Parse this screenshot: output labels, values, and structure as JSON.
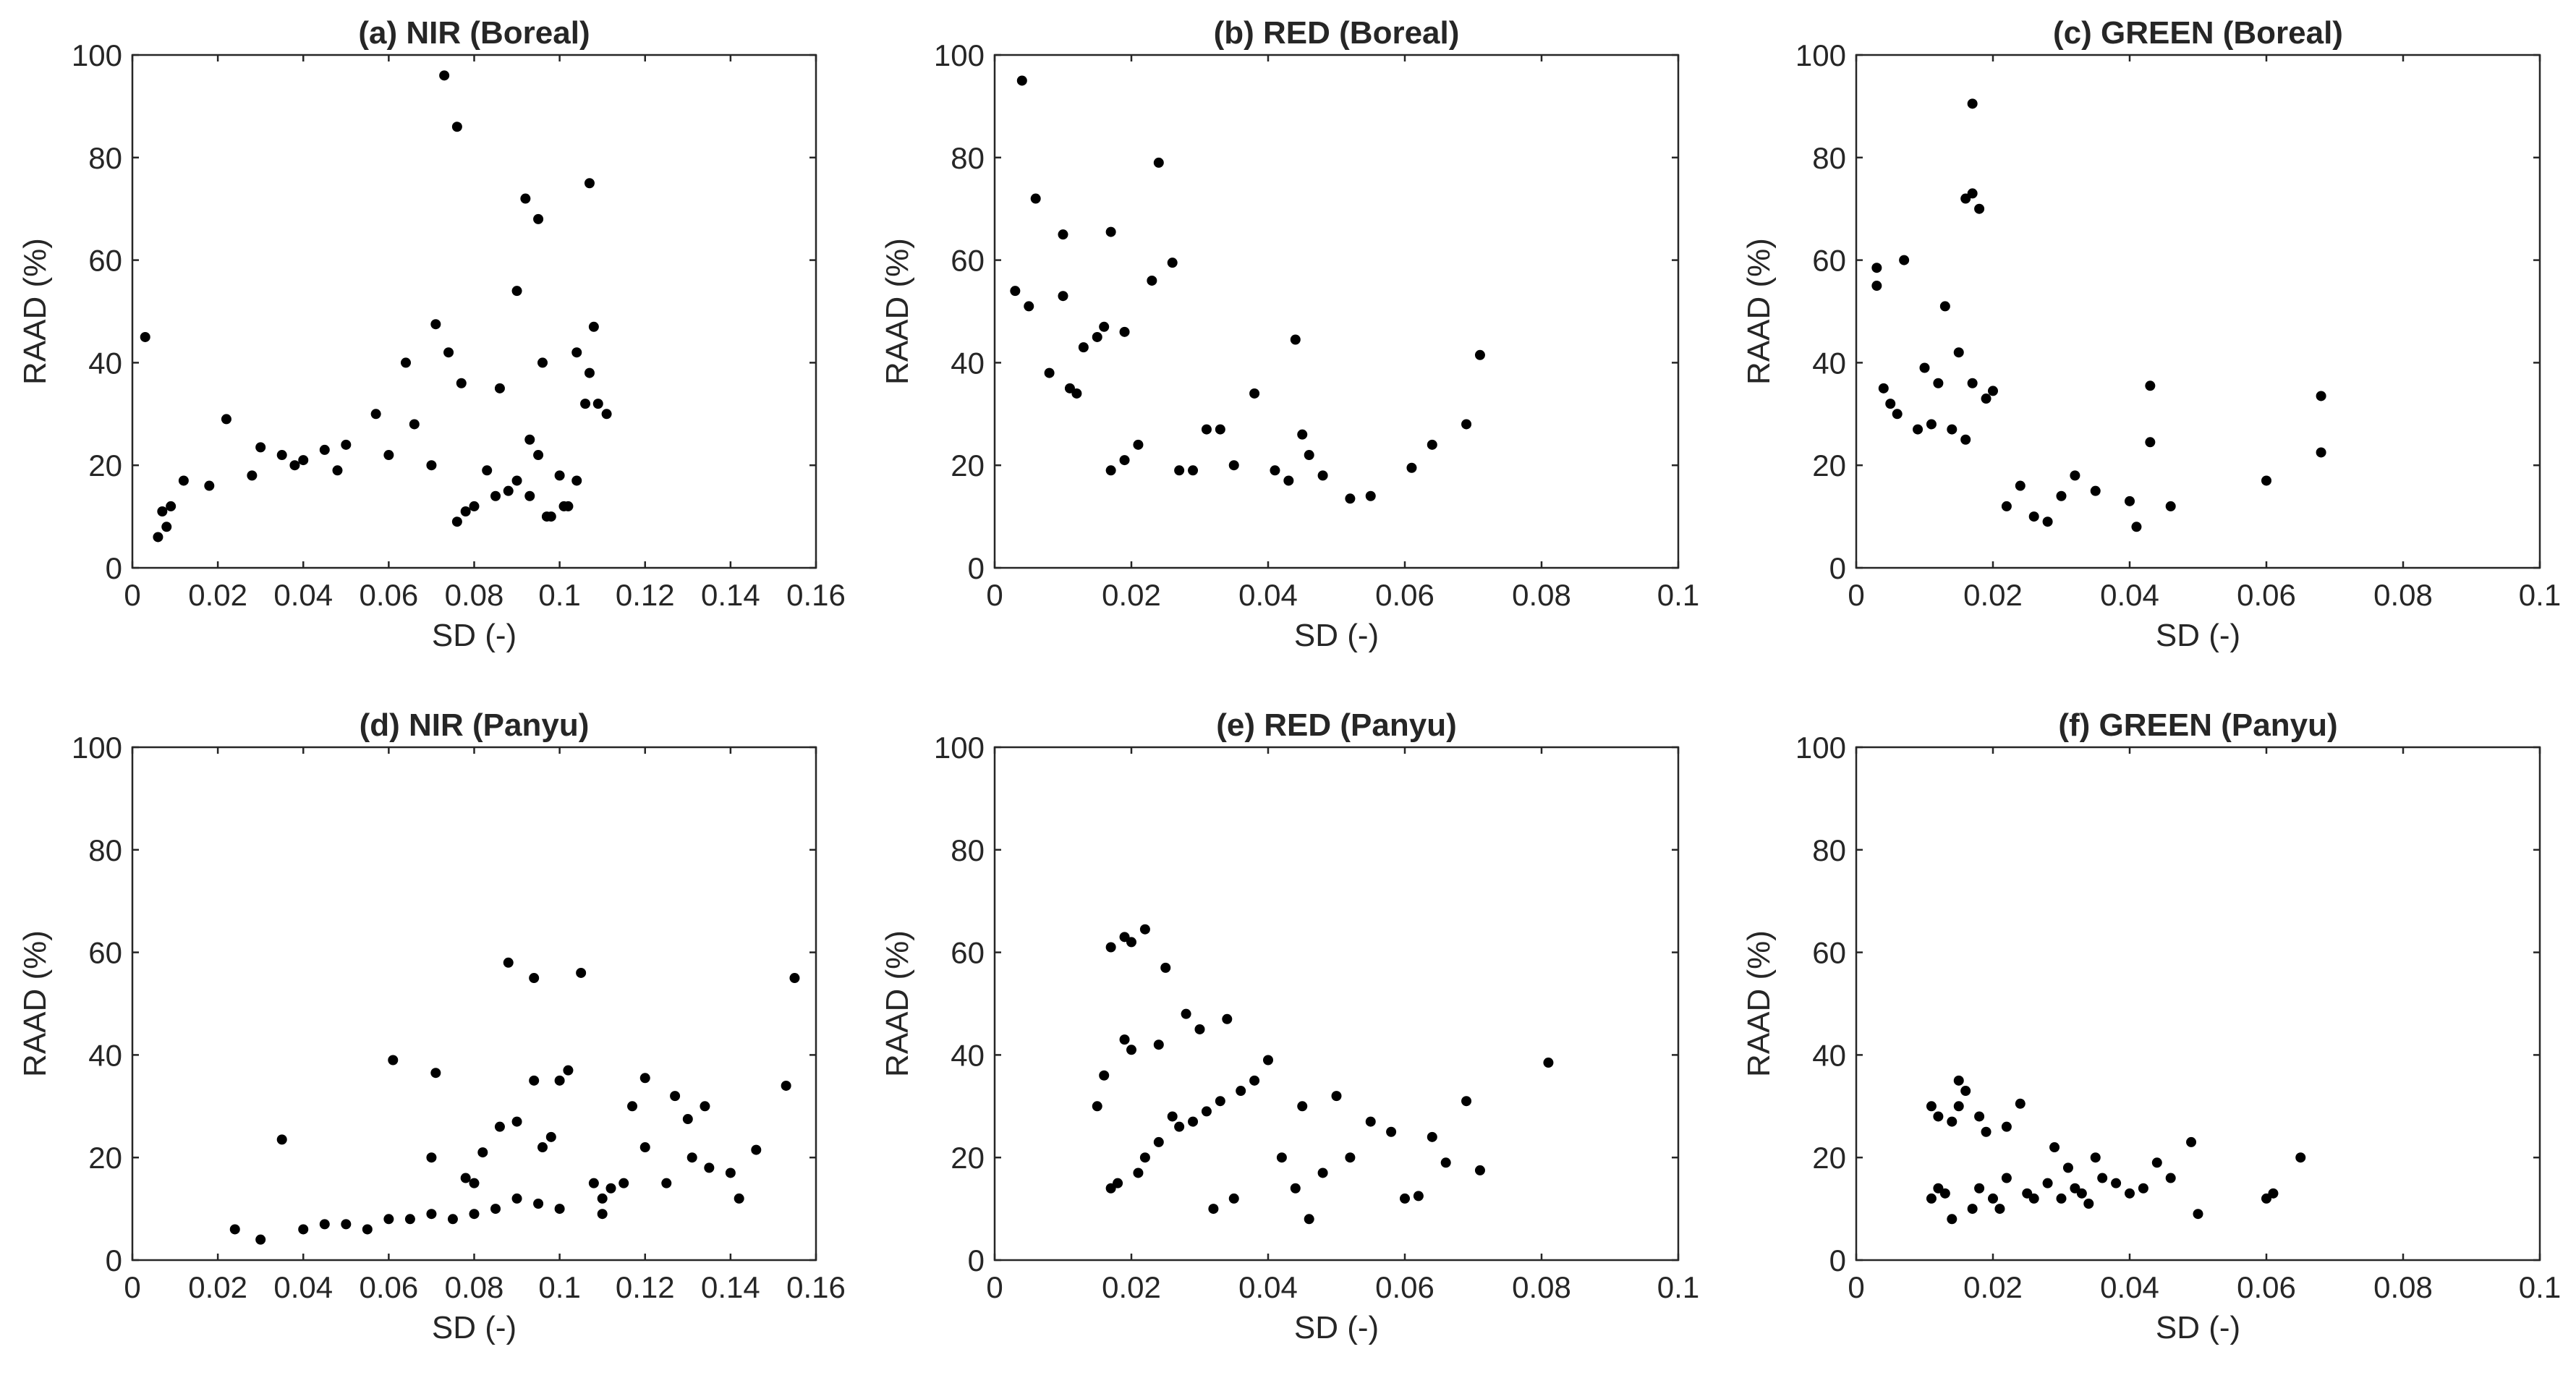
{
  "figure": {
    "panel_count": 6
  },
  "chart_data": [
    {
      "type": "scatter",
      "title": "(a) NIR (Boreal)",
      "xlabel": "SD (-)",
      "ylabel": "RAAD (%)",
      "xlim": [
        0,
        0.16
      ],
      "ylim": [
        0,
        100
      ],
      "xticks": [
        0,
        0.02,
        0.04,
        0.06,
        0.08,
        0.1,
        0.12,
        0.14,
        0.16
      ],
      "xtick_labels": [
        "0",
        "0.02",
        "0.04",
        "0.06",
        "0.08",
        "0.1",
        "0.12",
        "0.14",
        "0.16"
      ],
      "yticks": [
        0,
        20,
        40,
        60,
        80,
        100
      ],
      "ytick_labels": [
        "0",
        "20",
        "40",
        "60",
        "80",
        "100"
      ],
      "grid": false,
      "marker_color": "#000000",
      "x": [
        0.003,
        0.073,
        0.076,
        0.092,
        0.095,
        0.107,
        0.09,
        0.071,
        0.074,
        0.096,
        0.108,
        0.104,
        0.107,
        0.106,
        0.064,
        0.077,
        0.086,
        0.093,
        0.095,
        0.109,
        0.111,
        0.104,
        0.088,
        0.102,
        0.098,
        0.09,
        0.093,
        0.083,
        0.07,
        0.066,
        0.057,
        0.06,
        0.022,
        0.03,
        0.035,
        0.04,
        0.045,
        0.05,
        0.048,
        0.038,
        0.028,
        0.018,
        0.012,
        0.009,
        0.007,
        0.008,
        0.006,
        0.085,
        0.08,
        0.078,
        0.076,
        0.1,
        0.101,
        0.097
      ],
      "y": [
        45,
        96,
        86,
        72,
        68,
        75,
        54,
        47.5,
        42,
        40,
        47,
        42,
        38,
        32,
        40,
        36,
        35,
        25,
        22,
        32,
        30,
        17,
        15,
        12,
        10,
        17,
        14,
        19,
        20,
        28,
        30,
        22,
        29,
        23.5,
        22,
        21,
        23,
        24,
        19,
        20,
        18,
        16,
        17,
        12,
        11,
        8,
        6,
        14,
        12,
        11,
        9,
        18,
        12,
        10
      ]
    },
    {
      "type": "scatter",
      "title": "(b) RED (Boreal)",
      "xlabel": "SD (-)",
      "ylabel": "RAAD (%)",
      "xlim": [
        0,
        0.1
      ],
      "ylim": [
        0,
        100
      ],
      "xticks": [
        0,
        0.02,
        0.04,
        0.06,
        0.08,
        0.1
      ],
      "xtick_labels": [
        "0",
        "0.02",
        "0.04",
        "0.06",
        "0.08",
        "0.1"
      ],
      "yticks": [
        0,
        20,
        40,
        60,
        80,
        100
      ],
      "ytick_labels": [
        "0",
        "20",
        "40",
        "60",
        "80",
        "100"
      ],
      "grid": false,
      "marker_color": "#000000",
      "x": [
        0.004,
        0.024,
        0.006,
        0.017,
        0.01,
        0.026,
        0.023,
        0.003,
        0.005,
        0.01,
        0.016,
        0.019,
        0.015,
        0.013,
        0.044,
        0.071,
        0.069,
        0.064,
        0.061,
        0.055,
        0.052,
        0.045,
        0.046,
        0.041,
        0.038,
        0.035,
        0.033,
        0.031,
        0.029,
        0.027,
        0.048,
        0.043,
        0.021,
        0.019,
        0.017,
        0.008,
        0.011,
        0.012
      ],
      "y": [
        95,
        79,
        72,
        65.5,
        65,
        59.5,
        56,
        54,
        51,
        53,
        47,
        46,
        45,
        43,
        44.5,
        41.5,
        28,
        24,
        19.5,
        14,
        13.5,
        26,
        22,
        19,
        34,
        20,
        27,
        27,
        19,
        19,
        18,
        17,
        24,
        21,
        19,
        38,
        35,
        34
      ]
    },
    {
      "type": "scatter",
      "title": "(c) GREEN (Boreal)",
      "xlabel": "SD (-)",
      "ylabel": "RAAD (%)",
      "xlim": [
        0,
        0.1
      ],
      "ylim": [
        0,
        100
      ],
      "xticks": [
        0,
        0.02,
        0.04,
        0.06,
        0.08,
        0.1
      ],
      "xtick_labels": [
        "0",
        "0.02",
        "0.04",
        "0.06",
        "0.08",
        "0.1"
      ],
      "yticks": [
        0,
        20,
        40,
        60,
        80,
        100
      ],
      "ytick_labels": [
        "0",
        "20",
        "40",
        "60",
        "80",
        "100"
      ],
      "grid": false,
      "marker_color": "#000000",
      "x": [
        0.017,
        0.017,
        0.016,
        0.018,
        0.003,
        0.003,
        0.007,
        0.013,
        0.01,
        0.012,
        0.015,
        0.02,
        0.019,
        0.017,
        0.068,
        0.068,
        0.06,
        0.043,
        0.043,
        0.046,
        0.04,
        0.041,
        0.035,
        0.032,
        0.03,
        0.026,
        0.024,
        0.028,
        0.022,
        0.004,
        0.005,
        0.006,
        0.009,
        0.011,
        0.014,
        0.016
      ],
      "y": [
        90.5,
        73,
        72,
        70,
        58.5,
        55,
        60,
        51,
        39,
        36,
        42,
        34.5,
        33,
        36,
        33.5,
        22.5,
        17,
        35.5,
        24.5,
        12,
        13,
        8,
        15,
        18,
        14,
        10,
        16,
        9,
        12,
        35,
        32,
        30,
        27,
        28,
        27,
        25
      ]
    },
    {
      "type": "scatter",
      "title": "(d) NIR (Panyu)",
      "xlabel": "SD (-)",
      "ylabel": "RAAD (%)",
      "xlim": [
        0,
        0.16
      ],
      "ylim": [
        0,
        100
      ],
      "xticks": [
        0,
        0.02,
        0.04,
        0.06,
        0.08,
        0.1,
        0.12,
        0.14,
        0.16
      ],
      "xtick_labels": [
        "0",
        "0.02",
        "0.04",
        "0.06",
        "0.08",
        "0.1",
        "0.12",
        "0.14",
        "0.16"
      ],
      "yticks": [
        0,
        20,
        40,
        60,
        80,
        100
      ],
      "ytick_labels": [
        "0",
        "20",
        "40",
        "60",
        "80",
        "100"
      ],
      "grid": false,
      "marker_color": "#000000",
      "x": [
        0.088,
        0.094,
        0.105,
        0.155,
        0.061,
        0.071,
        0.102,
        0.1,
        0.094,
        0.12,
        0.153,
        0.134,
        0.127,
        0.117,
        0.13,
        0.146,
        0.131,
        0.135,
        0.14,
        0.12,
        0.125,
        0.142,
        0.108,
        0.112,
        0.096,
        0.098,
        0.09,
        0.086,
        0.082,
        0.078,
        0.035,
        0.024,
        0.03,
        0.04,
        0.045,
        0.05,
        0.055,
        0.06,
        0.065,
        0.07,
        0.075,
        0.08,
        0.085,
        0.09,
        0.095,
        0.1,
        0.11,
        0.115,
        0.11,
        0.07,
        0.08
      ],
      "y": [
        58,
        55,
        56,
        55,
        39,
        36.5,
        37,
        35,
        35,
        35.5,
        34,
        30,
        32,
        30,
        27.5,
        21.5,
        20,
        18,
        17,
        22,
        15,
        12,
        15,
        14,
        22,
        24,
        27,
        26,
        21,
        16,
        23.5,
        6,
        4,
        6,
        7,
        7,
        6,
        8,
        8,
        9,
        8,
        9,
        10,
        12,
        11,
        10,
        12,
        15,
        9,
        20,
        15
      ]
    },
    {
      "type": "scatter",
      "title": "(e) RED (Panyu)",
      "xlabel": "SD (-)",
      "ylabel": "RAAD (%)",
      "xlim": [
        0,
        0.1
      ],
      "ylim": [
        0,
        100
      ],
      "xticks": [
        0,
        0.02,
        0.04,
        0.06,
        0.08,
        0.1
      ],
      "xtick_labels": [
        "0",
        "0.02",
        "0.04",
        "0.06",
        "0.08",
        "0.1"
      ],
      "yticks": [
        0,
        20,
        40,
        60,
        80,
        100
      ],
      "ytick_labels": [
        "0",
        "20",
        "40",
        "60",
        "80",
        "100"
      ],
      "grid": false,
      "marker_color": "#000000",
      "x": [
        0.022,
        0.019,
        0.017,
        0.02,
        0.025,
        0.028,
        0.03,
        0.034,
        0.024,
        0.02,
        0.019,
        0.015,
        0.016,
        0.081,
        0.069,
        0.071,
        0.064,
        0.066,
        0.062,
        0.058,
        0.055,
        0.05,
        0.045,
        0.042,
        0.04,
        0.038,
        0.036,
        0.033,
        0.031,
        0.029,
        0.027,
        0.026,
        0.024,
        0.022,
        0.021,
        0.018,
        0.017,
        0.052,
        0.048,
        0.044,
        0.035,
        0.032,
        0.046,
        0.06
      ],
      "y": [
        64.5,
        63,
        61,
        62,
        57,
        48,
        45,
        47,
        42,
        41,
        43,
        30,
        36,
        38.5,
        31,
        17.5,
        24,
        19,
        12.5,
        25,
        27,
        32,
        30,
        20,
        39,
        35,
        33,
        31,
        29,
        27,
        26,
        28,
        23,
        20,
        17,
        15,
        14,
        20,
        17,
        14,
        12,
        10,
        8,
        12
      ]
    },
    {
      "type": "scatter",
      "title": "(f) GREEN (Panyu)",
      "xlabel": "SD (-)",
      "ylabel": "RAAD (%)",
      "xlim": [
        0,
        0.1
      ],
      "ylim": [
        0,
        100
      ],
      "xticks": [
        0,
        0.02,
        0.04,
        0.06,
        0.08,
        0.1
      ],
      "xtick_labels": [
        "0",
        "0.02",
        "0.04",
        "0.06",
        "0.08",
        "0.1"
      ],
      "yticks": [
        0,
        20,
        40,
        60,
        80,
        100
      ],
      "ytick_labels": [
        "0",
        "20",
        "40",
        "60",
        "80",
        "100"
      ],
      "grid": false,
      "marker_color": "#000000",
      "x": [
        0.015,
        0.016,
        0.015,
        0.024,
        0.011,
        0.018,
        0.019,
        0.022,
        0.012,
        0.014,
        0.065,
        0.06,
        0.061,
        0.049,
        0.05,
        0.046,
        0.044,
        0.042,
        0.04,
        0.038,
        0.036,
        0.034,
        0.032,
        0.03,
        0.028,
        0.026,
        0.025,
        0.022,
        0.021,
        0.02,
        0.018,
        0.017,
        0.014,
        0.013,
        0.012,
        0.011,
        0.029,
        0.031,
        0.035,
        0.033
      ],
      "y": [
        35,
        33,
        30,
        30.5,
        30,
        28,
        25,
        26,
        28,
        27,
        20,
        12,
        13,
        23,
        9,
        16,
        19,
        14,
        13,
        15,
        16,
        11,
        14,
        12,
        15,
        12,
        13,
        16,
        10,
        12,
        14,
        10,
        8,
        13,
        14,
        12,
        22,
        18,
        20,
        13
      ]
    }
  ]
}
